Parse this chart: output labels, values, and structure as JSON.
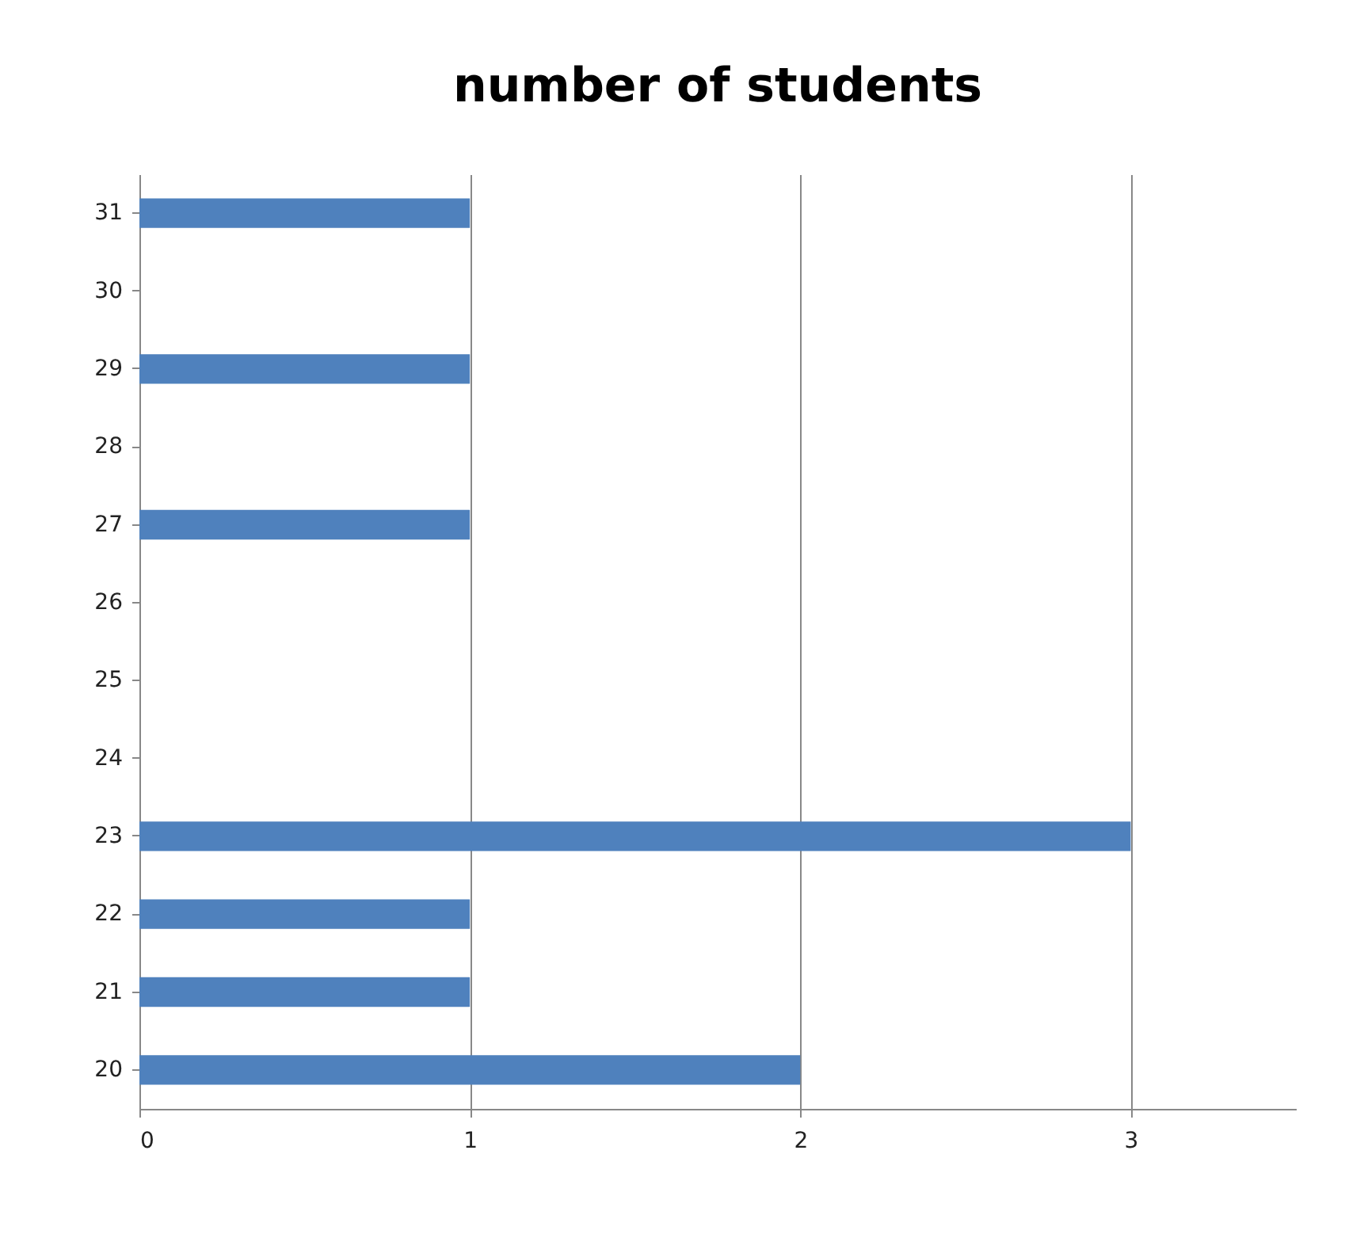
{
  "chart_data": {
    "type": "bar",
    "title": "number of students",
    "orientation": "horizontal",
    "categories": [
      "31",
      "30",
      "29",
      "28",
      "27",
      "26",
      "25",
      "24",
      "23",
      "22",
      "21",
      "20"
    ],
    "values": [
      1,
      0,
      1,
      0,
      1,
      0,
      0,
      0,
      3,
      1,
      1,
      2
    ],
    "color": "#4f81bd",
    "xlim": [
      0,
      3.5
    ],
    "xticks": [
      0,
      1,
      2,
      3
    ],
    "grid": "x"
  }
}
